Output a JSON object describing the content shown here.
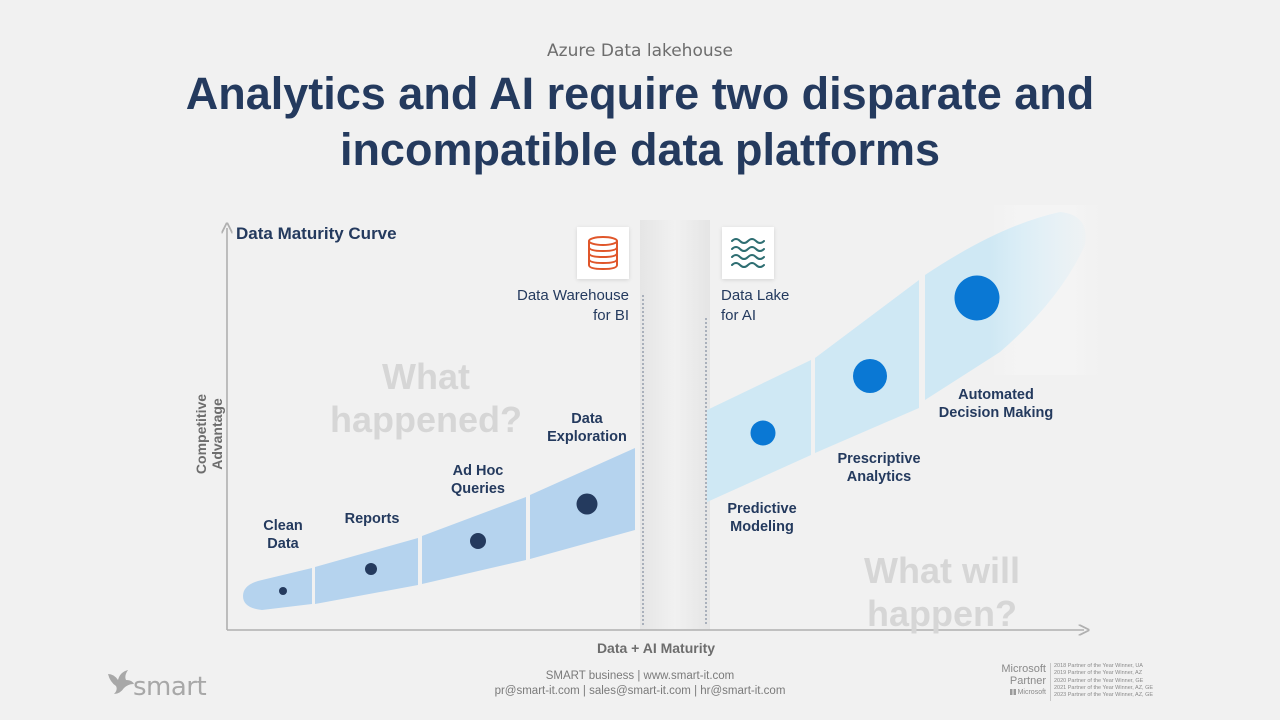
{
  "header": {
    "eyebrow": "Azure Data lakehouse",
    "title_line1": "Analytics and AI require two disparate and",
    "title_line2": "incompatible data platforms"
  },
  "diagram": {
    "curve_title": "Data Maturity Curve",
    "y_axis_label": "Competitive Advantage",
    "x_axis_label": "Data + AI Maturity",
    "warehouse": {
      "line1": "Data Warehouse",
      "line2": "for BI",
      "icon": "database-icon"
    },
    "lake": {
      "line1": "Data Lake",
      "line2": "for AI",
      "icon": "waves-icon"
    },
    "question_past": {
      "line1": "What",
      "line2": "happened?"
    },
    "question_future": {
      "line1": "What will",
      "line2": "happen?"
    },
    "stages": [
      {
        "line1": "Clean",
        "line2": "Data"
      },
      {
        "line1": "Reports",
        "line2": ""
      },
      {
        "line1": "Ad Hoc",
        "line2": "Queries"
      },
      {
        "line1": "Data",
        "line2": "Exploration"
      },
      {
        "line1": "Predictive",
        "line2": "Modeling"
      },
      {
        "line1": "Prescriptive",
        "line2": "Analytics"
      },
      {
        "line1": "Automated",
        "line2": "Decision Making"
      }
    ],
    "colors": {
      "band_bi": "#b5d3ee",
      "band_ai": "#cfe8f4",
      "dot_bi": "#243a5e",
      "dot_ai": "#0a78d4",
      "axis": "#b0b0b0"
    }
  },
  "footer": {
    "line1": "SMART business | www.smart-it.com",
    "line2": "pr@smart-it.com | sales@smart-it.com | hr@smart-it.com",
    "brand": "smart",
    "partner_line1": "Microsoft",
    "partner_line2": "Partner",
    "partner_sub": "Microsoft",
    "awards": [
      "2018 Partner of the Year Winner, UA",
      "2019 Partner of the Year Winner, AZ",
      "2020 Partner of the Year Winner, GE",
      "2021 Partner of the Year Winner, AZ, GE",
      "2023 Partner of the Year Winner, AZ, GE"
    ]
  }
}
